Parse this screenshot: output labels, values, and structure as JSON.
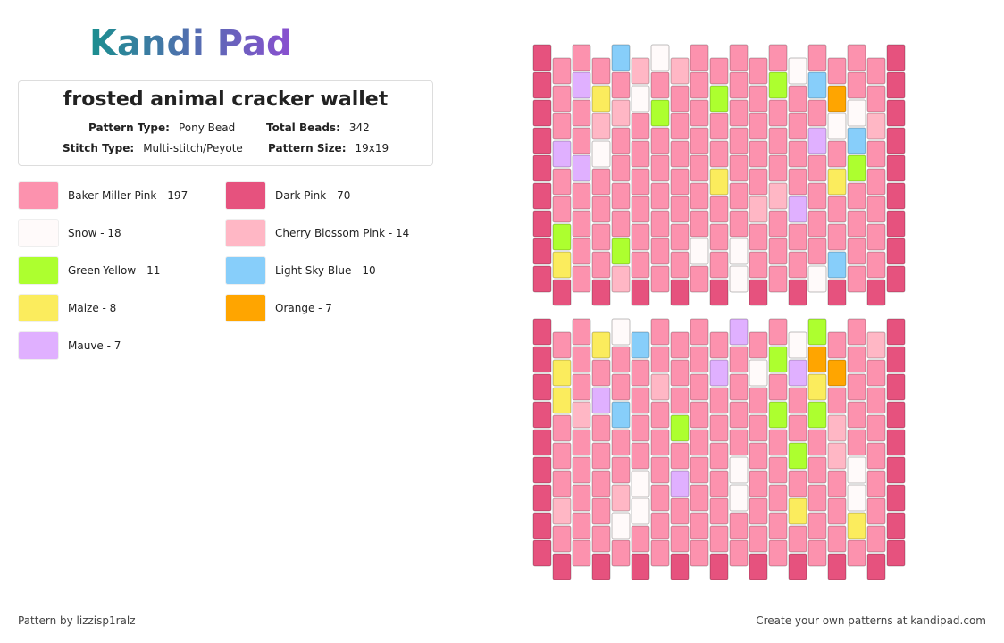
{
  "header": {
    "logo": "Kandi Pad"
  },
  "pattern": {
    "title": "frosted animal cracker wallet",
    "fields": [
      {
        "label": "Pattern Type:",
        "value": "Pony Bead"
      },
      {
        "label": "Total Beads:",
        "value": "342"
      },
      {
        "label": "Stitch Type:",
        "value": "Multi-stitch/Peyote"
      },
      {
        "label": "Pattern Size:",
        "value": "19x19"
      }
    ]
  },
  "legend": [
    {
      "label": "Baker-Miller Pink - 197",
      "color": "#fc92ae"
    },
    {
      "label": "Dark Pink - 70",
      "color": "#e6527e"
    },
    {
      "label": "Snow - 18",
      "color": "#fffafa"
    },
    {
      "label": "Cherry Blossom Pink - 14",
      "color": "#ffb7c5"
    },
    {
      "label": "Green-Yellow - 11",
      "color": "#adff2f"
    },
    {
      "label": "Light Sky Blue - 10",
      "color": "#87cefa"
    },
    {
      "label": "Maize - 8",
      "color": "#fbec5d"
    },
    {
      "label": "Orange - 7",
      "color": "#ffa500"
    },
    {
      "label": "Mauve - 7",
      "color": "#e0b0ff"
    }
  ],
  "footer": {
    "credit": "Pattern by lizzisp1ralz",
    "cta": "Create your own patterns at kandipad.com"
  }
}
